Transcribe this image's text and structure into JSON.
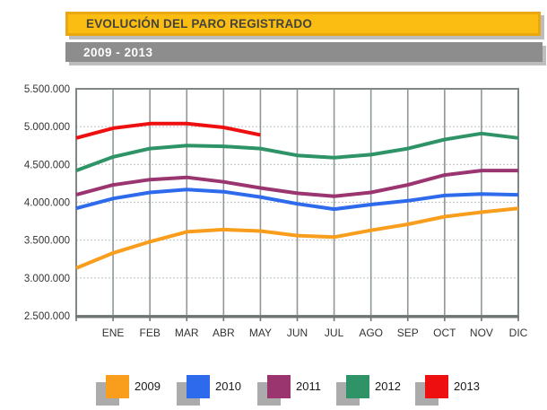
{
  "header": {
    "title": "EVOLUCIÓN DEL PARO REGISTRADO",
    "subtitle": "2009 - 2013",
    "title_bg": "#FBBD11",
    "title_border": "#EBA70F",
    "subtitle_bg": "#8D8D8D"
  },
  "chart_data": {
    "type": "line",
    "title": "EVOLUCIÓN DEL PARO REGISTRADO",
    "subtitle": "2009 - 2013",
    "categories": [
      "ENE",
      "FEB",
      "MAR",
      "ABR",
      "MAY",
      "JUN",
      "JUL",
      "AGO",
      "SEP",
      "OCT",
      "NOV",
      "DIC"
    ],
    "y_ticks": [
      "5.500.000",
      "5.000.000",
      "4.500.000",
      "4.000.000",
      "3.500.000",
      "3.000.000",
      "2.500.000"
    ],
    "ylim": [
      2500000,
      5500000
    ],
    "y_major_step": 500000,
    "grid": true,
    "legend_position": "bottom",
    "note": "Each line starts at the plot's left edge with the previous December value (start_prev_dec), then has one point per labelled month. 2013 ends in MAY.",
    "series": [
      {
        "name": "2009",
        "color": "#F89D1C",
        "start_prev_dec": 3130000,
        "values": [
          3330000,
          3480000,
          3610000,
          3640000,
          3620000,
          3560000,
          3540000,
          3630000,
          3710000,
          3810000,
          3870000,
          3920000
        ]
      },
      {
        "name": "2010",
        "color": "#2D6BEC",
        "start_prev_dec": 3920000,
        "values": [
          4050000,
          4130000,
          4170000,
          4140000,
          4070000,
          3980000,
          3910000,
          3970000,
          4020000,
          4090000,
          4110000,
          4100000
        ]
      },
      {
        "name": "2011",
        "color": "#9A3570",
        "start_prev_dec": 4100000,
        "values": [
          4230000,
          4300000,
          4330000,
          4270000,
          4190000,
          4120000,
          4080000,
          4130000,
          4230000,
          4360000,
          4420000,
          4420000
        ]
      },
      {
        "name": "2012",
        "color": "#2E9467",
        "start_prev_dec": 4420000,
        "values": [
          4600000,
          4710000,
          4750000,
          4740000,
          4710000,
          4620000,
          4590000,
          4630000,
          4710000,
          4830000,
          4910000,
          4850000
        ]
      },
      {
        "name": "2013",
        "color": "#EE1010",
        "start_prev_dec": 4850000,
        "values": [
          4980000,
          5040000,
          5040000,
          4990000,
          4890000
        ]
      }
    ],
    "style": {
      "h_grid_color": "#C3C8C8",
      "v_grid_color": "#8F9797",
      "border_color": "#7E8686",
      "axis_color": "#6E7575",
      "line_width": 4
    }
  }
}
